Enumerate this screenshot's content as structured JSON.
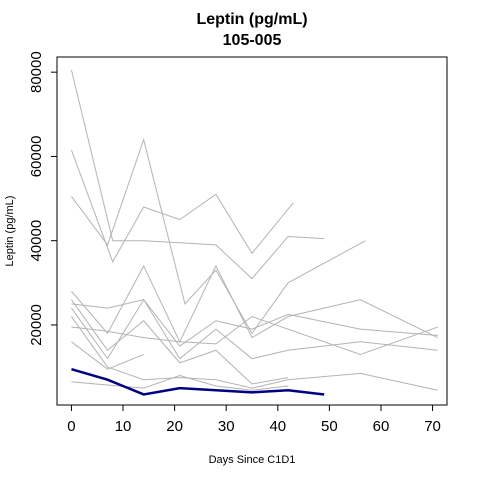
{
  "chart_data": {
    "type": "line",
    "title": "Leptin (pg/mL)",
    "subtitle": "105-005",
    "x_label": "Days Since C1D1",
    "y_label": "Leptin (pg/mL)",
    "xlim": [
      -2.8,
      72.8
    ],
    "xticks": [
      0,
      10,
      20,
      30,
      40,
      50,
      60,
      70
    ],
    "ylim": [
      1000,
      83600
    ],
    "yticks": [
      20000,
      40000,
      60000,
      80000
    ],
    "series": [
      {
        "color": "#b3b3b3",
        "x": [
          0,
          8,
          14,
          21,
          28,
          35,
          42,
          49
        ],
        "values": [
          80500,
          40000,
          40000,
          39500,
          39000,
          31000,
          41000,
          40500
        ]
      },
      {
        "color": "#b3b3b3",
        "x": [
          0,
          8,
          14,
          21,
          28,
          35,
          43
        ],
        "values": [
          61500,
          35000,
          48000,
          45000,
          51000,
          37000,
          49000
        ]
      },
      {
        "color": "#b3b3b3",
        "x": [
          0,
          7,
          14,
          22,
          28,
          35,
          42,
          57
        ],
        "values": [
          50500,
          39000,
          64000,
          25000,
          33000,
          18000,
          30000,
          40000
        ]
      },
      {
        "color": "#b3b3b3",
        "x": [
          0,
          7,
          14,
          21,
          28,
          35,
          42,
          56,
          71
        ],
        "values": [
          28000,
          18000,
          34000,
          16000,
          34000,
          17000,
          22000,
          26000,
          17000
        ]
      },
      {
        "color": "#b3b3b3",
        "x": [
          0,
          7,
          14,
          21,
          28,
          35,
          42,
          56,
          71
        ],
        "values": [
          25000,
          24000,
          26000,
          15000,
          21000,
          19000,
          22500,
          19000,
          17500
        ]
      },
      {
        "color": "#b3b3b3",
        "x": [
          0,
          7,
          14,
          21,
          28,
          35,
          42,
          56,
          71
        ],
        "values": [
          24000,
          12000,
          26000,
          12000,
          19000,
          12000,
          14000,
          16000,
          14000
        ]
      },
      {
        "color": "#b3b3b3",
        "x": [
          0,
          7,
          14,
          21,
          28,
          35,
          42,
          56,
          71
        ],
        "values": [
          19500,
          18500,
          17000,
          16000,
          15500,
          22000,
          19000,
          13000,
          19500
        ]
      },
      {
        "color": "#b3b3b3",
        "x": [
          0,
          7,
          14,
          21,
          28,
          35,
          42,
          56,
          71
        ],
        "values": [
          22000,
          10000,
          7000,
          7500,
          7000,
          5000,
          7000,
          8500,
          4500
        ]
      },
      {
        "color": "#b3b3b3",
        "x": [
          0,
          7,
          14
        ],
        "values": [
          16000,
          9500,
          13000
        ]
      },
      {
        "color": "#b3b3b3",
        "x": [
          0,
          7,
          14,
          21,
          28,
          35,
          42
        ],
        "values": [
          26000,
          14000,
          21000,
          11000,
          14000,
          6000,
          7500
        ]
      },
      {
        "color": "#b3b3b3",
        "x": [
          0,
          14,
          21,
          28,
          35,
          42
        ],
        "values": [
          6500,
          5000,
          8000,
          5500,
          4500,
          5500
        ]
      },
      {
        "color": "#000080",
        "x": [
          0,
          7,
          14,
          21,
          28,
          35,
          42,
          49
        ],
        "values": [
          9500,
          7000,
          3500,
          5000,
          4500,
          4000,
          4500,
          3500
        ]
      }
    ]
  }
}
